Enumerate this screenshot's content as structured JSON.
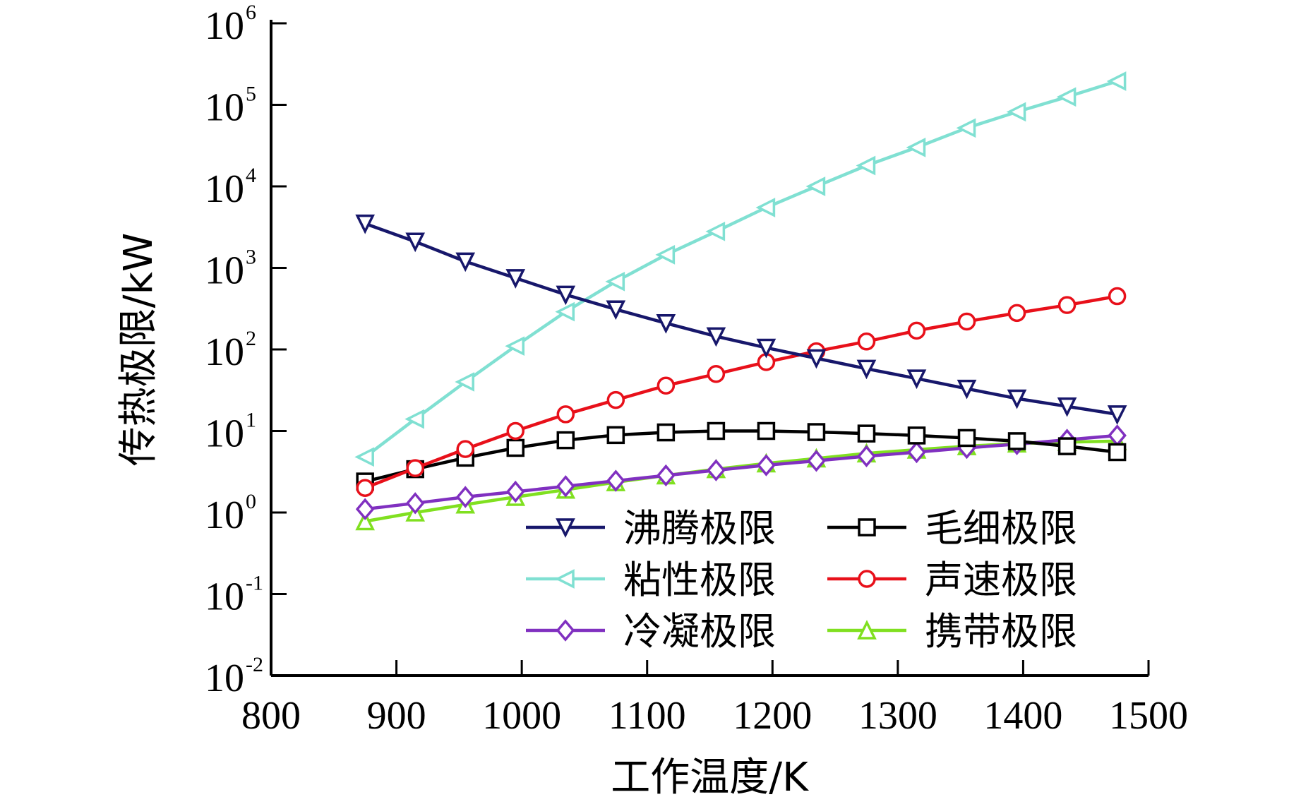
{
  "chart_data": {
    "type": "line",
    "title": "",
    "xlabel": "工作温度/K",
    "ylabel": "传热极限/kW",
    "xlim": [
      800,
      1500
    ],
    "ylim": [
      0.01,
      1000000
    ],
    "yscale": "log",
    "xticks": [
      "800",
      "900",
      "1000",
      "1100",
      "1200",
      "1300",
      "1400",
      "1500"
    ],
    "xtick_values": [
      800,
      900,
      1000,
      1100,
      1200,
      1300,
      1400,
      1500
    ],
    "yticks": [
      {
        "base": "10",
        "exp": "6",
        "value": 1000000
      },
      {
        "base": "10",
        "exp": "5",
        "value": 100000
      },
      {
        "base": "10",
        "exp": "4",
        "value": 10000
      },
      {
        "base": "10",
        "exp": "3",
        "value": 1000
      },
      {
        "base": "10",
        "exp": "2",
        "value": 100
      },
      {
        "base": "10",
        "exp": "1",
        "value": 10
      },
      {
        "base": "10",
        "exp": "0",
        "value": 1
      },
      {
        "base": "10",
        "exp": "-1",
        "value": 0.1
      },
      {
        "base": "10",
        "exp": "-2",
        "value": 0.01
      }
    ],
    "grid": false,
    "legend_position": "bottom-right",
    "x": [
      875,
      915,
      955,
      995,
      1035,
      1075,
      1115,
      1155,
      1195,
      1235,
      1275,
      1315,
      1355,
      1395,
      1435,
      1475
    ],
    "series": [
      {
        "name": "沸腾极限",
        "color": "#17176b",
        "marker": "triangle-down",
        "values": [
          3500,
          2100,
          1200,
          750,
          470,
          310,
          210,
          145,
          105,
          78,
          58,
          44,
          33,
          25,
          20,
          16
        ]
      },
      {
        "name": "毛细极限",
        "color": "#000000",
        "marker": "square",
        "values": [
          2.4,
          3.4,
          4.7,
          6.2,
          7.7,
          8.9,
          9.6,
          10,
          10,
          9.7,
          9.3,
          8.8,
          8.2,
          7.5,
          6.5,
          5.5
        ]
      },
      {
        "name": "粘性极限",
        "color": "#80e0d2",
        "marker": "triangle-left",
        "values": [
          4.8,
          14,
          40,
          110,
          290,
          680,
          1450,
          2800,
          5500,
          10000,
          18000,
          30000,
          52000,
          82000,
          125000,
          195000
        ]
      },
      {
        "name": "声速极限",
        "color": "#e8101a",
        "marker": "circle",
        "values": [
          2.0,
          3.5,
          6,
          10,
          16,
          24,
          36,
          50,
          70,
          95,
          125,
          170,
          220,
          280,
          350,
          450
        ]
      },
      {
        "name": "冷凝极限",
        "color": "#8030c0",
        "marker": "diamond",
        "values": [
          1.1,
          1.3,
          1.55,
          1.8,
          2.1,
          2.45,
          2.85,
          3.3,
          3.8,
          4.3,
          4.9,
          5.5,
          6.2,
          6.9,
          7.8,
          8.8
        ]
      },
      {
        "name": "携带极限",
        "color": "#80e020",
        "marker": "triangle-up",
        "values": [
          0.78,
          1.0,
          1.25,
          1.55,
          1.9,
          2.35,
          2.85,
          3.4,
          4.0,
          4.6,
          5.3,
          5.9,
          6.5,
          7.0,
          7.3,
          7.5
        ]
      }
    ]
  }
}
